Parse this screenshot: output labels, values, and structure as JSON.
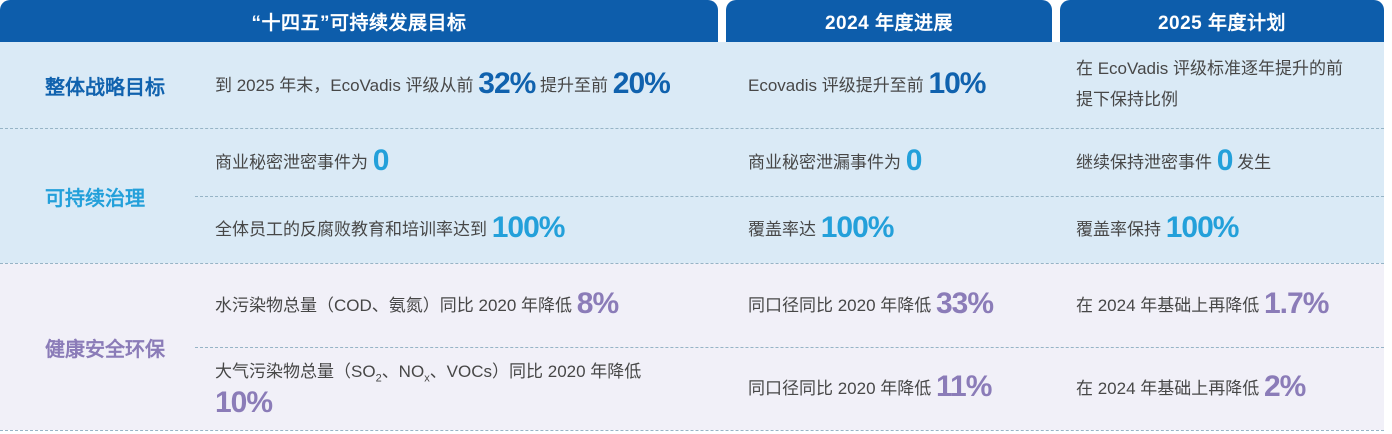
{
  "palette": {
    "header_bg": "#0d5dab",
    "section_blue_bg": "#daeaf6",
    "section_lavender_bg": "#f1f0f8",
    "divider": "#96b4c6",
    "body_text": "#474747"
  },
  "header": {
    "columns": [
      "“十四五”可持续发展目标",
      "2024 年度进展",
      "2025 年度计划"
    ]
  },
  "sections": [
    {
      "label": "整体战略目标",
      "accent": "#1062ae",
      "rows": [
        {
          "goal": [
            {
              "t": "到 2025 年末，EcoVadis 评级从前 "
            },
            {
              "n": "32%"
            },
            {
              "t": " 提升至前 "
            },
            {
              "n": "20%"
            }
          ],
          "progress": [
            {
              "t": "Ecovadis 评级提升至前 "
            },
            {
              "n": "10%"
            }
          ],
          "plan": [
            {
              "t": "在 EcoVadis 评级标准逐年提升的前提下保持比例"
            }
          ]
        }
      ]
    },
    {
      "label": "可持续治理",
      "accent": "#23a0da",
      "rows": [
        {
          "goal": [
            {
              "t": "商业秘密泄密事件为 "
            },
            {
              "n": "0"
            }
          ],
          "progress": [
            {
              "t": "商业秘密泄漏事件为 "
            },
            {
              "n": "0"
            }
          ],
          "plan": [
            {
              "t": "继续保持泄密事件 "
            },
            {
              "n": "0"
            },
            {
              "t": " 发生"
            }
          ]
        },
        {
          "goal": [
            {
              "t": "全体员工的反腐败教育和培训率达到 "
            },
            {
              "n": "100%"
            }
          ],
          "progress": [
            {
              "t": "覆盖率达 "
            },
            {
              "n": "100%"
            }
          ],
          "plan": [
            {
              "t": "覆盖率保持 "
            },
            {
              "n": "100%"
            }
          ]
        }
      ]
    },
    {
      "label": "健康安全环保",
      "accent": "#8b7cb8",
      "rows": [
        {
          "goal": [
            {
              "t": "水污染物总量（COD、氨氮）同比 2020 年降低 "
            },
            {
              "n": "8%"
            }
          ],
          "progress": [
            {
              "t": "同口径同比 2020 年降低 "
            },
            {
              "n": "33%"
            }
          ],
          "plan": [
            {
              "t": "在 2024 年基础上再降低 "
            },
            {
              "n": "1.7%"
            }
          ]
        },
        {
          "goal": [
            {
              "t": "大气污染物总量（SO"
            },
            {
              "sub": "2"
            },
            {
              "t": "、NO"
            },
            {
              "sub": "x"
            },
            {
              "t": "、VOCs）同比 2020 年降低 "
            },
            {
              "n": "10%"
            }
          ],
          "progress": [
            {
              "t": "同口径同比 2020 年降低 "
            },
            {
              "n": "11%"
            }
          ],
          "plan": [
            {
              "t": "在 2024 年基础上再降低 "
            },
            {
              "n": "2%"
            }
          ]
        }
      ]
    }
  ]
}
